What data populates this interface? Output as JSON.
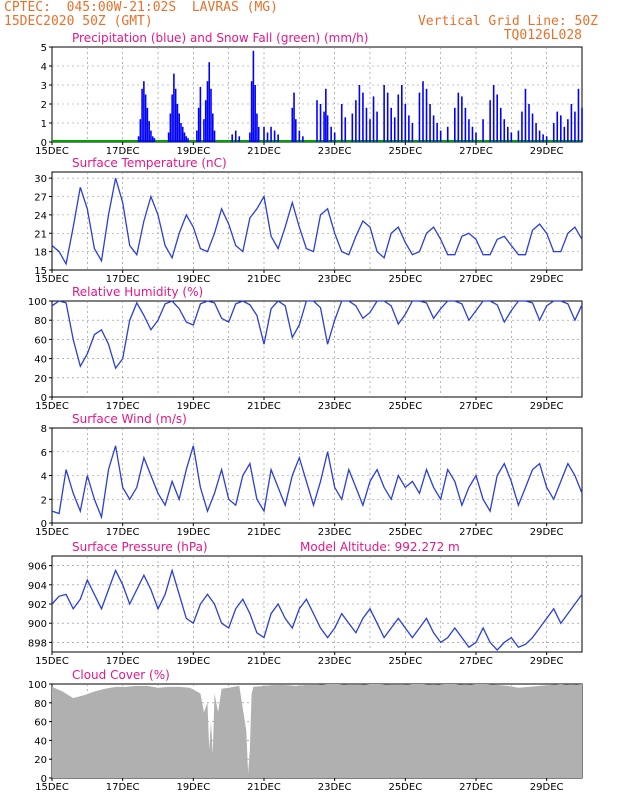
{
  "header": {
    "station": "CPTEC:  045:00W-21:02S  LAVRAS (MG)",
    "date": "15DEC2020 50Z (GMT)",
    "grid_note": "Vertical Grid Line: 50Z",
    "model": "TQ0126L028",
    "altitude": "Model Altitude: 992.272 m"
  },
  "colors": {
    "header": "#e8702a",
    "title": "#e0188a",
    "precip": "#0000ff",
    "snow": "#00a000",
    "line": "#2a3fd6",
    "cloud": "#b0b0b0"
  },
  "x_ticks": [
    "15DEC",
    "17DEC",
    "19DEC",
    "21DEC",
    "23DEC",
    "25DEC",
    "27DEC",
    "29DEC"
  ],
  "chart_data": [
    {
      "type": "bar",
      "title": "Precipitation (blue) and Snow Fall (green) (mm/h)",
      "ylim": [
        0,
        5
      ],
      "yticks": [
        0,
        1,
        2,
        3,
        4,
        5
      ],
      "x_days": [
        17.45,
        17.5,
        17.55,
        17.6,
        17.65,
        17.7,
        17.75,
        17.8,
        17.85,
        17.9,
        18.3,
        18.35,
        18.4,
        18.45,
        18.5,
        18.55,
        18.6,
        18.65,
        18.7,
        18.75,
        18.8,
        18.85,
        19.1,
        19.15,
        19.2,
        19.3,
        19.35,
        19.4,
        19.45,
        19.5,
        19.55,
        19.6,
        20.1,
        20.2,
        20.3,
        20.6,
        20.65,
        20.7,
        20.75,
        20.8,
        20.85,
        21.0,
        21.1,
        21.2,
        21.3,
        21.4,
        21.8,
        21.85,
        21.9,
        22.0,
        22.1,
        22.5,
        22.6,
        22.7,
        22.75,
        22.8,
        22.9,
        23.0,
        23.2,
        23.3,
        23.5,
        23.6,
        23.7,
        23.8,
        23.9,
        24.0,
        24.1,
        24.2,
        24.4,
        24.5,
        24.6,
        24.7,
        24.8,
        24.9,
        25.0,
        25.1,
        25.2,
        25.4,
        25.5,
        25.6,
        25.7,
        25.8,
        25.9,
        26.0,
        26.2,
        26.4,
        26.5,
        26.6,
        26.7,
        26.8,
        26.9,
        27.0,
        27.2,
        27.4,
        27.5,
        27.6,
        27.7,
        27.8,
        27.9,
        28.0,
        28.2,
        28.3,
        28.4,
        28.5,
        28.6,
        28.7,
        28.8,
        28.9,
        29.0,
        29.2,
        29.3,
        29.4,
        29.5,
        29.6,
        29.7,
        29.8,
        29.9,
        30.0
      ],
      "values": [
        0.3,
        1.2,
        2.8,
        3.2,
        2.5,
        1.8,
        1.1,
        0.6,
        0.3,
        0.2,
        0.5,
        1.5,
        2.5,
        3.6,
        2.8,
        2.0,
        1.5,
        1.0,
        0.8,
        0.5,
        0.3,
        0.2,
        0.6,
        1.8,
        2.9,
        1.2,
        2.2,
        3.2,
        4.2,
        2.8,
        1.5,
        0.6,
        0.4,
        0.6,
        0.3,
        0.5,
        3.2,
        4.8,
        3.0,
        1.5,
        0.8,
        0.8,
        0.5,
        0.8,
        0.6,
        0.4,
        1.8,
        2.6,
        1.2,
        0.6,
        0.3,
        2.2,
        2.0,
        1.6,
        2.8,
        1.4,
        0.8,
        0.5,
        2.0,
        1.3,
        1.5,
        2.2,
        3.0,
        2.6,
        1.8,
        1.2,
        2.4,
        1.6,
        3.0,
        2.6,
        1.8,
        1.3,
        2.5,
        3.0,
        2.0,
        1.4,
        1.0,
        2.6,
        3.2,
        2.8,
        2.0,
        1.4,
        1.0,
        0.6,
        0.8,
        1.8,
        2.6,
        2.4,
        1.8,
        1.2,
        0.8,
        0.5,
        1.2,
        2.2,
        3.0,
        2.5,
        1.8,
        1.2,
        0.8,
        0.5,
        0.6,
        1.6,
        2.8,
        2.0,
        1.5,
        1.0,
        0.6,
        0.4,
        0.3,
        1.0,
        1.6,
        1.4,
        0.8,
        1.2,
        2.0,
        1.6,
        2.8,
        1.8
      ]
    },
    {
      "type": "line",
      "title": "Surface Temperature (nC)",
      "ylim": [
        15,
        31
      ],
      "yticks": [
        15,
        18,
        21,
        24,
        27,
        30
      ],
      "x_days": [
        15.0,
        15.2,
        15.4,
        15.6,
        15.8,
        16.0,
        16.2,
        16.4,
        16.6,
        16.8,
        17.0,
        17.2,
        17.4,
        17.6,
        17.8,
        18.0,
        18.2,
        18.4,
        18.6,
        18.8,
        19.0,
        19.2,
        19.4,
        19.6,
        19.8,
        20.0,
        20.2,
        20.4,
        20.6,
        20.8,
        21.0,
        21.2,
        21.4,
        21.6,
        21.8,
        22.0,
        22.2,
        22.4,
        22.6,
        22.8,
        23.0,
        23.2,
        23.4,
        23.6,
        23.8,
        24.0,
        24.2,
        24.4,
        24.6,
        24.8,
        25.0,
        25.2,
        25.4,
        25.6,
        25.8,
        26.0,
        26.2,
        26.4,
        26.6,
        26.8,
        27.0,
        27.2,
        27.4,
        27.6,
        27.8,
        28.0,
        28.2,
        28.4,
        28.6,
        28.8,
        29.0,
        29.2,
        29.4,
        29.6,
        29.8,
        30.0
      ],
      "values": [
        19.0,
        18.0,
        16.0,
        22.0,
        28.5,
        25.0,
        18.5,
        16.5,
        24.0,
        30.0,
        26.0,
        19.0,
        17.5,
        23.0,
        27.0,
        24.0,
        19.0,
        17.0,
        21.0,
        24.0,
        22.0,
        18.5,
        18.0,
        21.0,
        25.0,
        22.5,
        19.0,
        18.0,
        23.5,
        25.0,
        27.0,
        20.5,
        18.5,
        22.0,
        26.0,
        22.0,
        18.5,
        18.0,
        24.0,
        25.0,
        21.0,
        18.0,
        17.5,
        20.5,
        23.0,
        22.0,
        18.0,
        17.0,
        21.0,
        22.0,
        19.5,
        17.5,
        18.0,
        21.0,
        22.0,
        20.0,
        17.5,
        17.5,
        20.5,
        21.0,
        20.0,
        17.5,
        17.5,
        20.0,
        20.5,
        19.0,
        17.5,
        17.5,
        21.5,
        22.5,
        21.0,
        18.0,
        18.0,
        21.0,
        22.0,
        20.0
      ]
    },
    {
      "type": "line",
      "title": "Relative Humidity (%)",
      "ylim": [
        0,
        100
      ],
      "yticks": [
        0,
        20,
        40,
        60,
        80,
        100
      ],
      "x_days": [
        15.0,
        15.2,
        15.4,
        15.6,
        15.8,
        16.0,
        16.2,
        16.4,
        16.6,
        16.8,
        17.0,
        17.2,
        17.4,
        17.6,
        17.8,
        18.0,
        18.2,
        18.4,
        18.6,
        18.8,
        19.0,
        19.2,
        19.4,
        19.6,
        19.8,
        20.0,
        20.2,
        20.4,
        20.6,
        20.8,
        21.0,
        21.2,
        21.4,
        21.6,
        21.8,
        22.0,
        22.2,
        22.4,
        22.6,
        22.8,
        23.0,
        23.2,
        23.4,
        23.6,
        23.8,
        24.0,
        24.2,
        24.4,
        24.6,
        24.8,
        25.0,
        25.2,
        25.4,
        25.6,
        25.8,
        26.0,
        26.2,
        26.4,
        26.6,
        26.8,
        27.0,
        27.2,
        27.4,
        27.6,
        27.8,
        28.0,
        28.2,
        28.4,
        28.6,
        28.8,
        29.0,
        29.2,
        29.4,
        29.6,
        29.8,
        30.0
      ],
      "values": [
        95,
        100,
        98,
        60,
        32,
        45,
        65,
        70,
        55,
        30,
        40,
        80,
        98,
        85,
        70,
        80,
        97,
        100,
        92,
        78,
        75,
        97,
        100,
        98,
        82,
        78,
        97,
        100,
        96,
        85,
        55,
        92,
        100,
        95,
        62,
        75,
        100,
        100,
        93,
        55,
        80,
        100,
        100,
        95,
        82,
        88,
        100,
        100,
        95,
        76,
        86,
        100,
        100,
        98,
        82,
        92,
        100,
        100,
        97,
        80,
        90,
        100,
        100,
        96,
        78,
        90,
        100,
        100,
        98,
        80,
        95,
        100,
        100,
        97,
        80,
        96
      ]
    },
    {
      "type": "line",
      "title": "Surface Wind (m/s)",
      "ylim": [
        0,
        8
      ],
      "yticks": [
        0,
        2,
        4,
        6,
        8
      ],
      "x_days": [
        15.0,
        15.2,
        15.4,
        15.6,
        15.8,
        16.0,
        16.2,
        16.4,
        16.6,
        16.8,
        17.0,
        17.2,
        17.4,
        17.6,
        17.8,
        18.0,
        18.2,
        18.4,
        18.6,
        18.8,
        19.0,
        19.2,
        19.4,
        19.6,
        19.8,
        20.0,
        20.2,
        20.4,
        20.6,
        20.8,
        21.0,
        21.2,
        21.4,
        21.6,
        21.8,
        22.0,
        22.2,
        22.4,
        22.6,
        22.8,
        23.0,
        23.2,
        23.4,
        23.6,
        23.8,
        24.0,
        24.2,
        24.4,
        24.6,
        24.8,
        25.0,
        25.2,
        25.4,
        25.6,
        25.8,
        26.0,
        26.2,
        26.4,
        26.6,
        26.8,
        27.0,
        27.2,
        27.4,
        27.6,
        27.8,
        28.0,
        28.2,
        28.4,
        28.6,
        28.8,
        29.0,
        29.2,
        29.4,
        29.6,
        29.8,
        30.0
      ],
      "values": [
        1.0,
        0.8,
        4.5,
        2.5,
        1.0,
        4.0,
        2.0,
        0.5,
        4.5,
        6.5,
        3.0,
        2.0,
        3.0,
        5.5,
        4.0,
        2.5,
        1.5,
        3.5,
        2.0,
        4.5,
        6.5,
        3.0,
        1.0,
        2.5,
        4.5,
        2.0,
        1.5,
        4.0,
        5.0,
        2.0,
        1.0,
        4.5,
        3.0,
        1.5,
        4.0,
        5.5,
        3.5,
        1.5,
        3.5,
        6.0,
        3.0,
        2.0,
        4.5,
        3.0,
        1.5,
        3.5,
        4.5,
        3.0,
        2.0,
        4.0,
        3.0,
        3.5,
        2.5,
        4.5,
        3.0,
        2.0,
        4.5,
        3.5,
        1.5,
        3.0,
        4.0,
        2.0,
        1.0,
        4.0,
        5.0,
        3.5,
        1.5,
        3.0,
        4.5,
        5.0,
        3.0,
        2.0,
        3.5,
        5.0,
        4.0,
        2.5
      ]
    },
    {
      "type": "line",
      "title": "Surface Pressure (hPa)",
      "ylim": [
        897,
        907
      ],
      "yticks": [
        898,
        900,
        902,
        904,
        906
      ],
      "x_days": [
        15.0,
        15.2,
        15.4,
        15.6,
        15.8,
        16.0,
        16.2,
        16.4,
        16.6,
        16.8,
        17.0,
        17.2,
        17.4,
        17.6,
        17.8,
        18.0,
        18.2,
        18.4,
        18.6,
        18.8,
        19.0,
        19.2,
        19.4,
        19.6,
        19.8,
        20.0,
        20.2,
        20.4,
        20.6,
        20.8,
        21.0,
        21.2,
        21.4,
        21.6,
        21.8,
        22.0,
        22.2,
        22.4,
        22.6,
        22.8,
        23.0,
        23.2,
        23.4,
        23.6,
        23.8,
        24.0,
        24.2,
        24.4,
        24.6,
        24.8,
        25.0,
        25.2,
        25.4,
        25.6,
        25.8,
        26.0,
        26.2,
        26.4,
        26.6,
        26.8,
        27.0,
        27.2,
        27.4,
        27.6,
        27.8,
        28.0,
        28.2,
        28.4,
        28.6,
        28.8,
        29.0,
        29.2,
        29.4,
        29.6,
        29.8,
        30.0
      ],
      "values": [
        902.0,
        902.8,
        903.0,
        901.5,
        902.5,
        904.5,
        903.0,
        901.5,
        903.5,
        905.5,
        904.0,
        902.0,
        903.5,
        905.0,
        903.5,
        901.5,
        903.0,
        905.5,
        903.0,
        900.5,
        900.0,
        902.0,
        903.0,
        902.0,
        900.0,
        899.5,
        901.5,
        902.5,
        901.0,
        899.0,
        898.5,
        901.0,
        902.0,
        900.5,
        899.5,
        901.5,
        902.5,
        901.0,
        899.5,
        898.5,
        899.5,
        901.0,
        900.0,
        899.0,
        900.5,
        901.5,
        900.0,
        898.5,
        899.5,
        900.5,
        899.5,
        898.5,
        899.5,
        900.5,
        899.0,
        898.0,
        898.5,
        899.5,
        898.5,
        897.5,
        898.0,
        899.5,
        898.0,
        897.2,
        898.0,
        898.5,
        897.5,
        897.8,
        898.5,
        899.5,
        900.5,
        901.5,
        900.0,
        901.0,
        902.0,
        903.0
      ]
    },
    {
      "type": "area",
      "title": "Cloud Cover (%)",
      "ylim": [
        0,
        100
      ],
      "yticks": [
        0,
        20,
        40,
        60,
        80,
        100
      ],
      "x_days": [
        15.0,
        15.3,
        15.6,
        15.9,
        16.2,
        16.5,
        16.8,
        17.1,
        17.4,
        17.7,
        18.0,
        18.3,
        18.6,
        18.9,
        19.2,
        19.3,
        19.4,
        19.45,
        19.5,
        19.55,
        19.6,
        19.7,
        19.8,
        20.0,
        20.3,
        20.5,
        20.55,
        20.6,
        20.65,
        20.7,
        21.0,
        21.3,
        21.6,
        21.9,
        22.2,
        22.5,
        22.8,
        23.1,
        23.4,
        23.7,
        24.0,
        24.3,
        24.6,
        24.9,
        25.2,
        25.5,
        25.8,
        26.1,
        26.4,
        26.7,
        27.0,
        27.3,
        27.6,
        27.9,
        28.2,
        28.5,
        28.8,
        29.1,
        29.4,
        29.7,
        30.0
      ],
      "values": [
        97,
        92,
        85,
        88,
        92,
        95,
        97,
        97,
        98,
        98,
        96,
        97,
        97,
        96,
        90,
        70,
        80,
        30,
        60,
        25,
        90,
        70,
        95,
        96,
        98,
        50,
        5,
        30,
        90,
        97,
        98,
        99,
        99,
        98,
        99,
        99,
        100,
        100,
        99,
        99,
        100,
        100,
        99,
        99,
        100,
        100,
        99,
        100,
        100,
        99,
        100,
        100,
        99,
        98,
        96,
        97,
        98,
        99,
        100,
        99,
        100
      ]
    }
  ]
}
